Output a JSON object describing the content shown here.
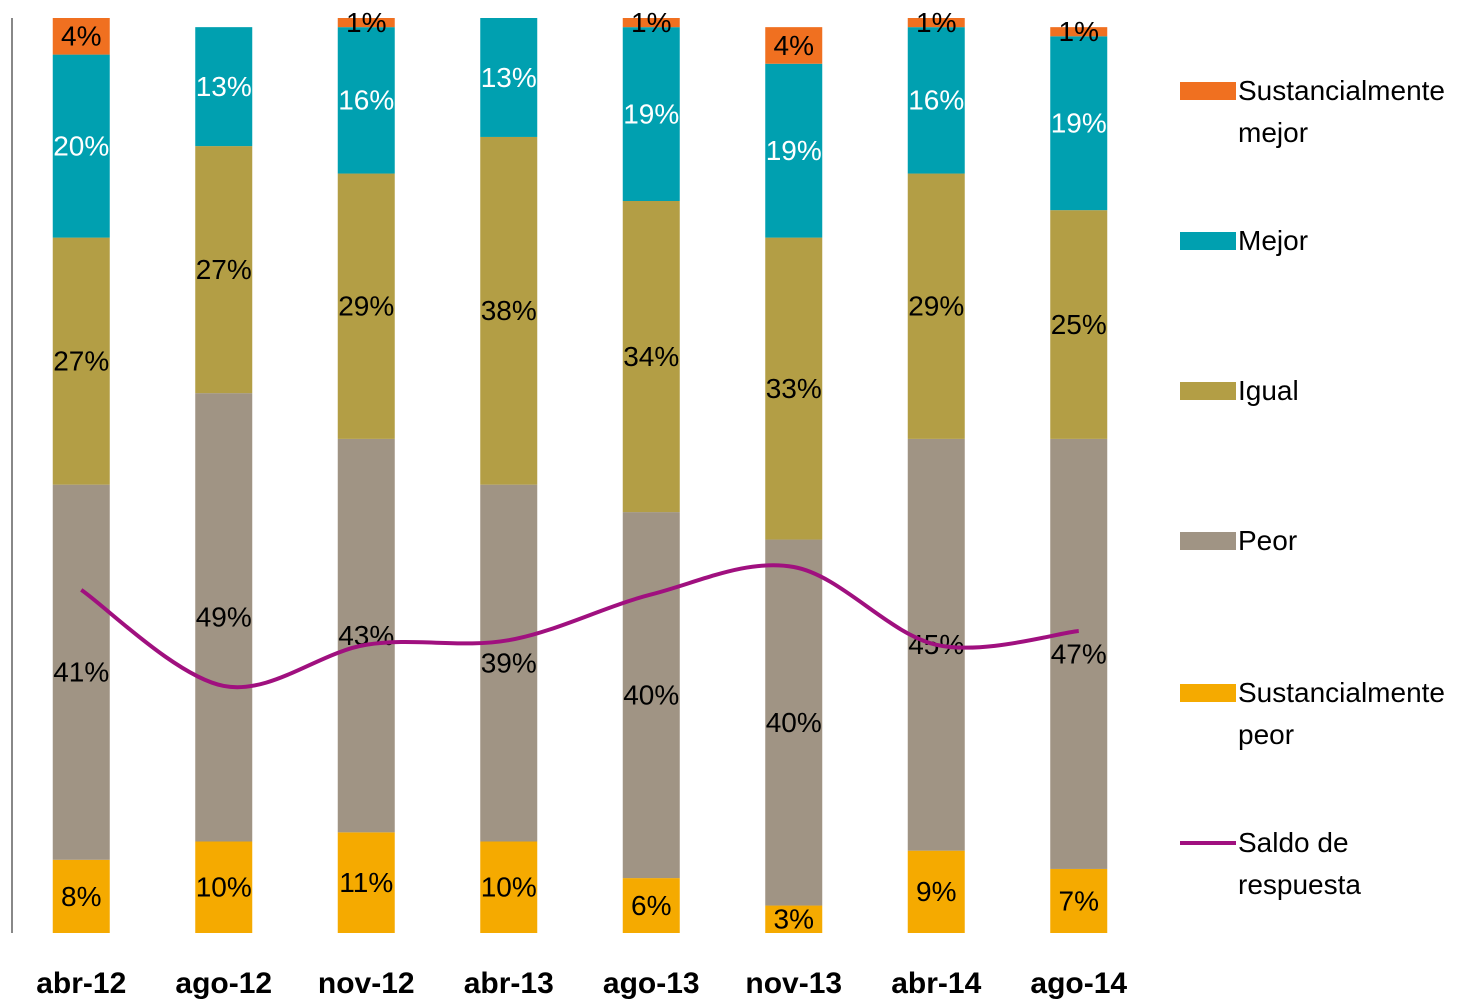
{
  "chart_data": {
    "type": "bar",
    "categories": [
      "abr-12",
      "ago-12",
      "nov-12",
      "abr-13",
      "ago-13",
      "nov-13",
      "abr-14",
      "ago-14"
    ],
    "ylim": [
      0,
      100
    ],
    "y2lim": [
      -100,
      100
    ],
    "series": [
      {
        "name": "Sustancialmente peor",
        "color": "#f5aa00",
        "values": [
          8,
          10,
          11,
          10,
          6,
          3,
          9,
          7
        ],
        "value_labels": [
          "8%",
          "10%",
          "11%",
          "10%",
          "6%",
          "3%",
          "9%",
          "7%"
        ]
      },
      {
        "name": "Peor",
        "color": "#a09484",
        "values": [
          41,
          49,
          43,
          39,
          40,
          40,
          45,
          47
        ],
        "value_labels": [
          "41%",
          "49%",
          "43%",
          "39%",
          "40%",
          "40%",
          "45%",
          "47%"
        ]
      },
      {
        "name": "Igual",
        "color": "#b39e45",
        "values": [
          27,
          27,
          29,
          38,
          34,
          33,
          29,
          25
        ],
        "value_labels": [
          "27%",
          "27%",
          "29%",
          "38%",
          "34%",
          "33%",
          "29%",
          "25%"
        ]
      },
      {
        "name": "Mejor",
        "color": "#00a0b0",
        "values": [
          20,
          13,
          16,
          13,
          19,
          19,
          16,
          19
        ],
        "value_labels": [
          "20%",
          "13%",
          "16%",
          "13%",
          "19%",
          "19%",
          "16%",
          "19%"
        ]
      },
      {
        "name": "Sustancialmente mejor",
        "color": "#f07020",
        "values": [
          4,
          null,
          1,
          null,
          1,
          4,
          1,
          1
        ],
        "value_labels": [
          "4%",
          null,
          "1%",
          null,
          "1%",
          "4%",
          "1%",
          "1%"
        ]
      },
      {
        "name": "Saldo de respuesta",
        "color": "#a0107f",
        "type": "line",
        "axis": "y2",
        "values": [
          -25,
          -46,
          -37,
          -36,
          -26,
          -20,
          -37,
          -34
        ]
      }
    ]
  }
}
